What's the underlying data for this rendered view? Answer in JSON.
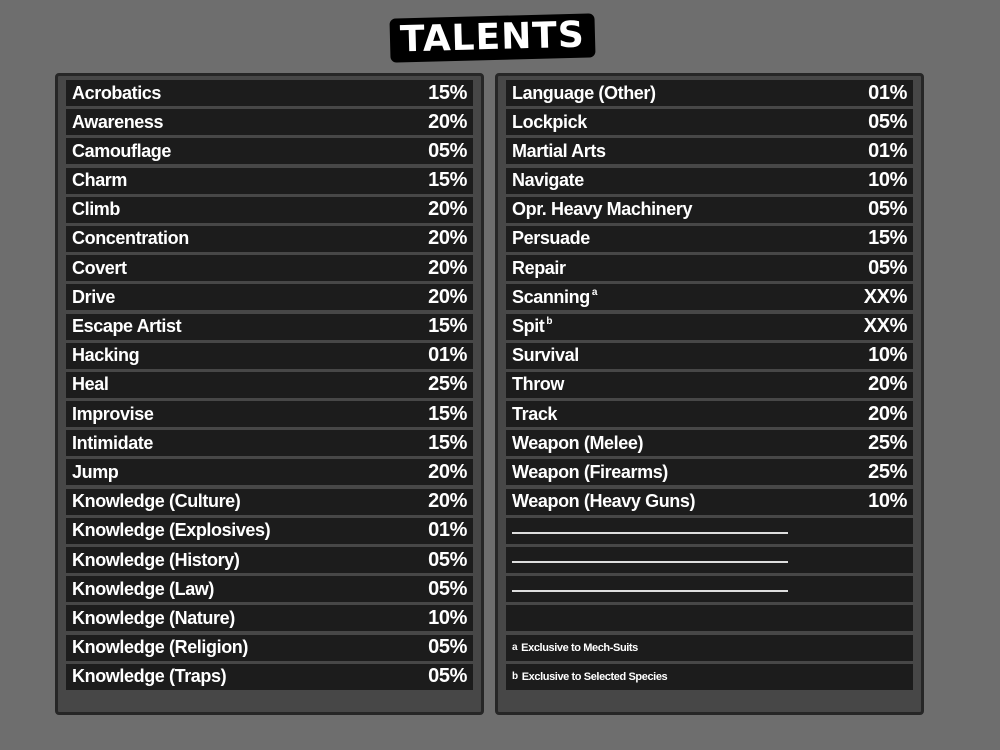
{
  "title": "TALENTS",
  "left_talents": [
    {
      "name": "Acrobatics",
      "value": "15%"
    },
    {
      "name": "Awareness",
      "value": "20%"
    },
    {
      "name": "Camouflage",
      "value": "05%"
    },
    {
      "name": "Charm",
      "value": "15%"
    },
    {
      "name": "Climb",
      "value": "20%"
    },
    {
      "name": "Concentration",
      "value": "20%"
    },
    {
      "name": "Covert",
      "value": "20%"
    },
    {
      "name": "Drive",
      "value": "20%"
    },
    {
      "name": "Escape Artist",
      "value": "15%"
    },
    {
      "name": "Hacking",
      "value": "01%"
    },
    {
      "name": "Heal",
      "value": "25%"
    },
    {
      "name": "Improvise",
      "value": "15%"
    },
    {
      "name": "Intimidate",
      "value": "15%"
    },
    {
      "name": "Jump",
      "value": "20%"
    },
    {
      "name": "Knowledge (Culture)",
      "value": "20%"
    },
    {
      "name": "Knowledge (Explosives)",
      "value": "01%"
    },
    {
      "name": "Knowledge (History)",
      "value": "05%"
    },
    {
      "name": "Knowledge (Law)",
      "value": "05%"
    },
    {
      "name": "Knowledge (Nature)",
      "value": "10%"
    },
    {
      "name": "Knowledge (Religion)",
      "value": "05%"
    },
    {
      "name": "Knowledge (Traps)",
      "value": "05%"
    }
  ],
  "right_talents": [
    {
      "name": "Language (Other)",
      "value": "01%",
      "sup": ""
    },
    {
      "name": "Lockpick",
      "value": "05%",
      "sup": ""
    },
    {
      "name": "Martial Arts",
      "value": "01%",
      "sup": ""
    },
    {
      "name": "Navigate",
      "value": "10%",
      "sup": ""
    },
    {
      "name": "Opr. Heavy Machinery",
      "value": "05%",
      "sup": ""
    },
    {
      "name": "Persuade",
      "value": "15%",
      "sup": ""
    },
    {
      "name": "Repair",
      "value": "05%",
      "sup": ""
    },
    {
      "name": "Scanning",
      "value": "XX%",
      "sup": "a"
    },
    {
      "name": "Spit",
      "value": "XX%",
      "sup": "b"
    },
    {
      "name": "Survival",
      "value": "10%",
      "sup": ""
    },
    {
      "name": "Throw",
      "value": "20%",
      "sup": ""
    },
    {
      "name": "Track",
      "value": "20%",
      "sup": ""
    },
    {
      "name": "Weapon (Melee)",
      "value": "25%",
      "sup": ""
    },
    {
      "name": "Weapon (Firearms)",
      "value": "25%",
      "sup": ""
    },
    {
      "name": "Weapon (Heavy Guns)",
      "value": "10%",
      "sup": ""
    }
  ],
  "footnotes": [
    {
      "mark": "a",
      "text": "Exclusive to Mech-Suits"
    },
    {
      "mark": "b",
      "text": "Exclusive to Selected Species"
    }
  ]
}
